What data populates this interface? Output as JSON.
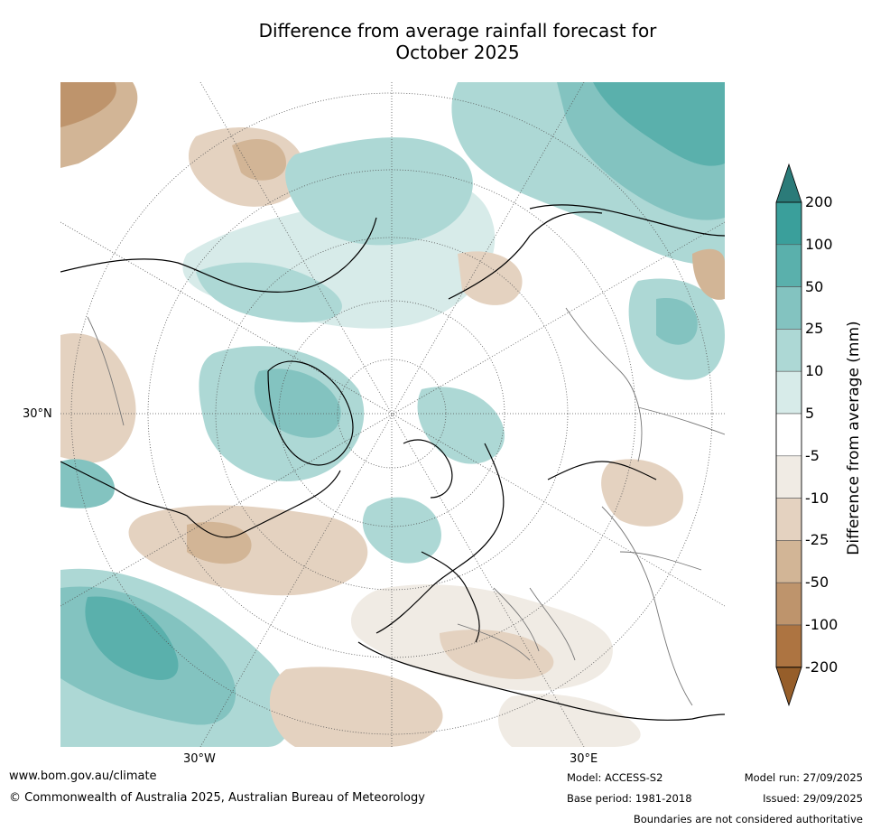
{
  "title_line1": "Difference from average rainfall forecast for",
  "title_line2": "October 2025",
  "map": {
    "projection": "north-polar-stereographic",
    "lat_labels": [
      {
        "text": "30°N"
      }
    ],
    "lon_labels": [
      {
        "text": "30°W"
      },
      {
        "text": "30°E"
      }
    ]
  },
  "colorbar": {
    "title": "Difference from average (mm)",
    "levels": [
      "200",
      "100",
      "50",
      "25",
      "10",
      "5",
      "-5",
      "-10",
      "-25",
      "-50",
      "-100",
      "-200"
    ],
    "colors": [
      "#2b7b79",
      "#3a9f9b",
      "#5ab0ac",
      "#83c3c0",
      "#add8d5",
      "#d7ebe9",
      "#ffffff",
      "#f0ebe4",
      "#e4d2c0",
      "#d2b596",
      "#be946c",
      "#ad7441",
      "#965e2a"
    ],
    "extend": "both"
  },
  "footer": {
    "website": "www.bom.gov.au/climate",
    "copyright": "© Commonwealth of Australia 2025, Australian Bureau of Meteorology",
    "model": "Model: ACCESS-S2",
    "base_period": "Base period: 1981-2018",
    "model_run": "Model run: 27/09/2025",
    "issued": "Issued: 29/09/2025",
    "boundaries_note": "Boundaries are not considered authoritative"
  }
}
